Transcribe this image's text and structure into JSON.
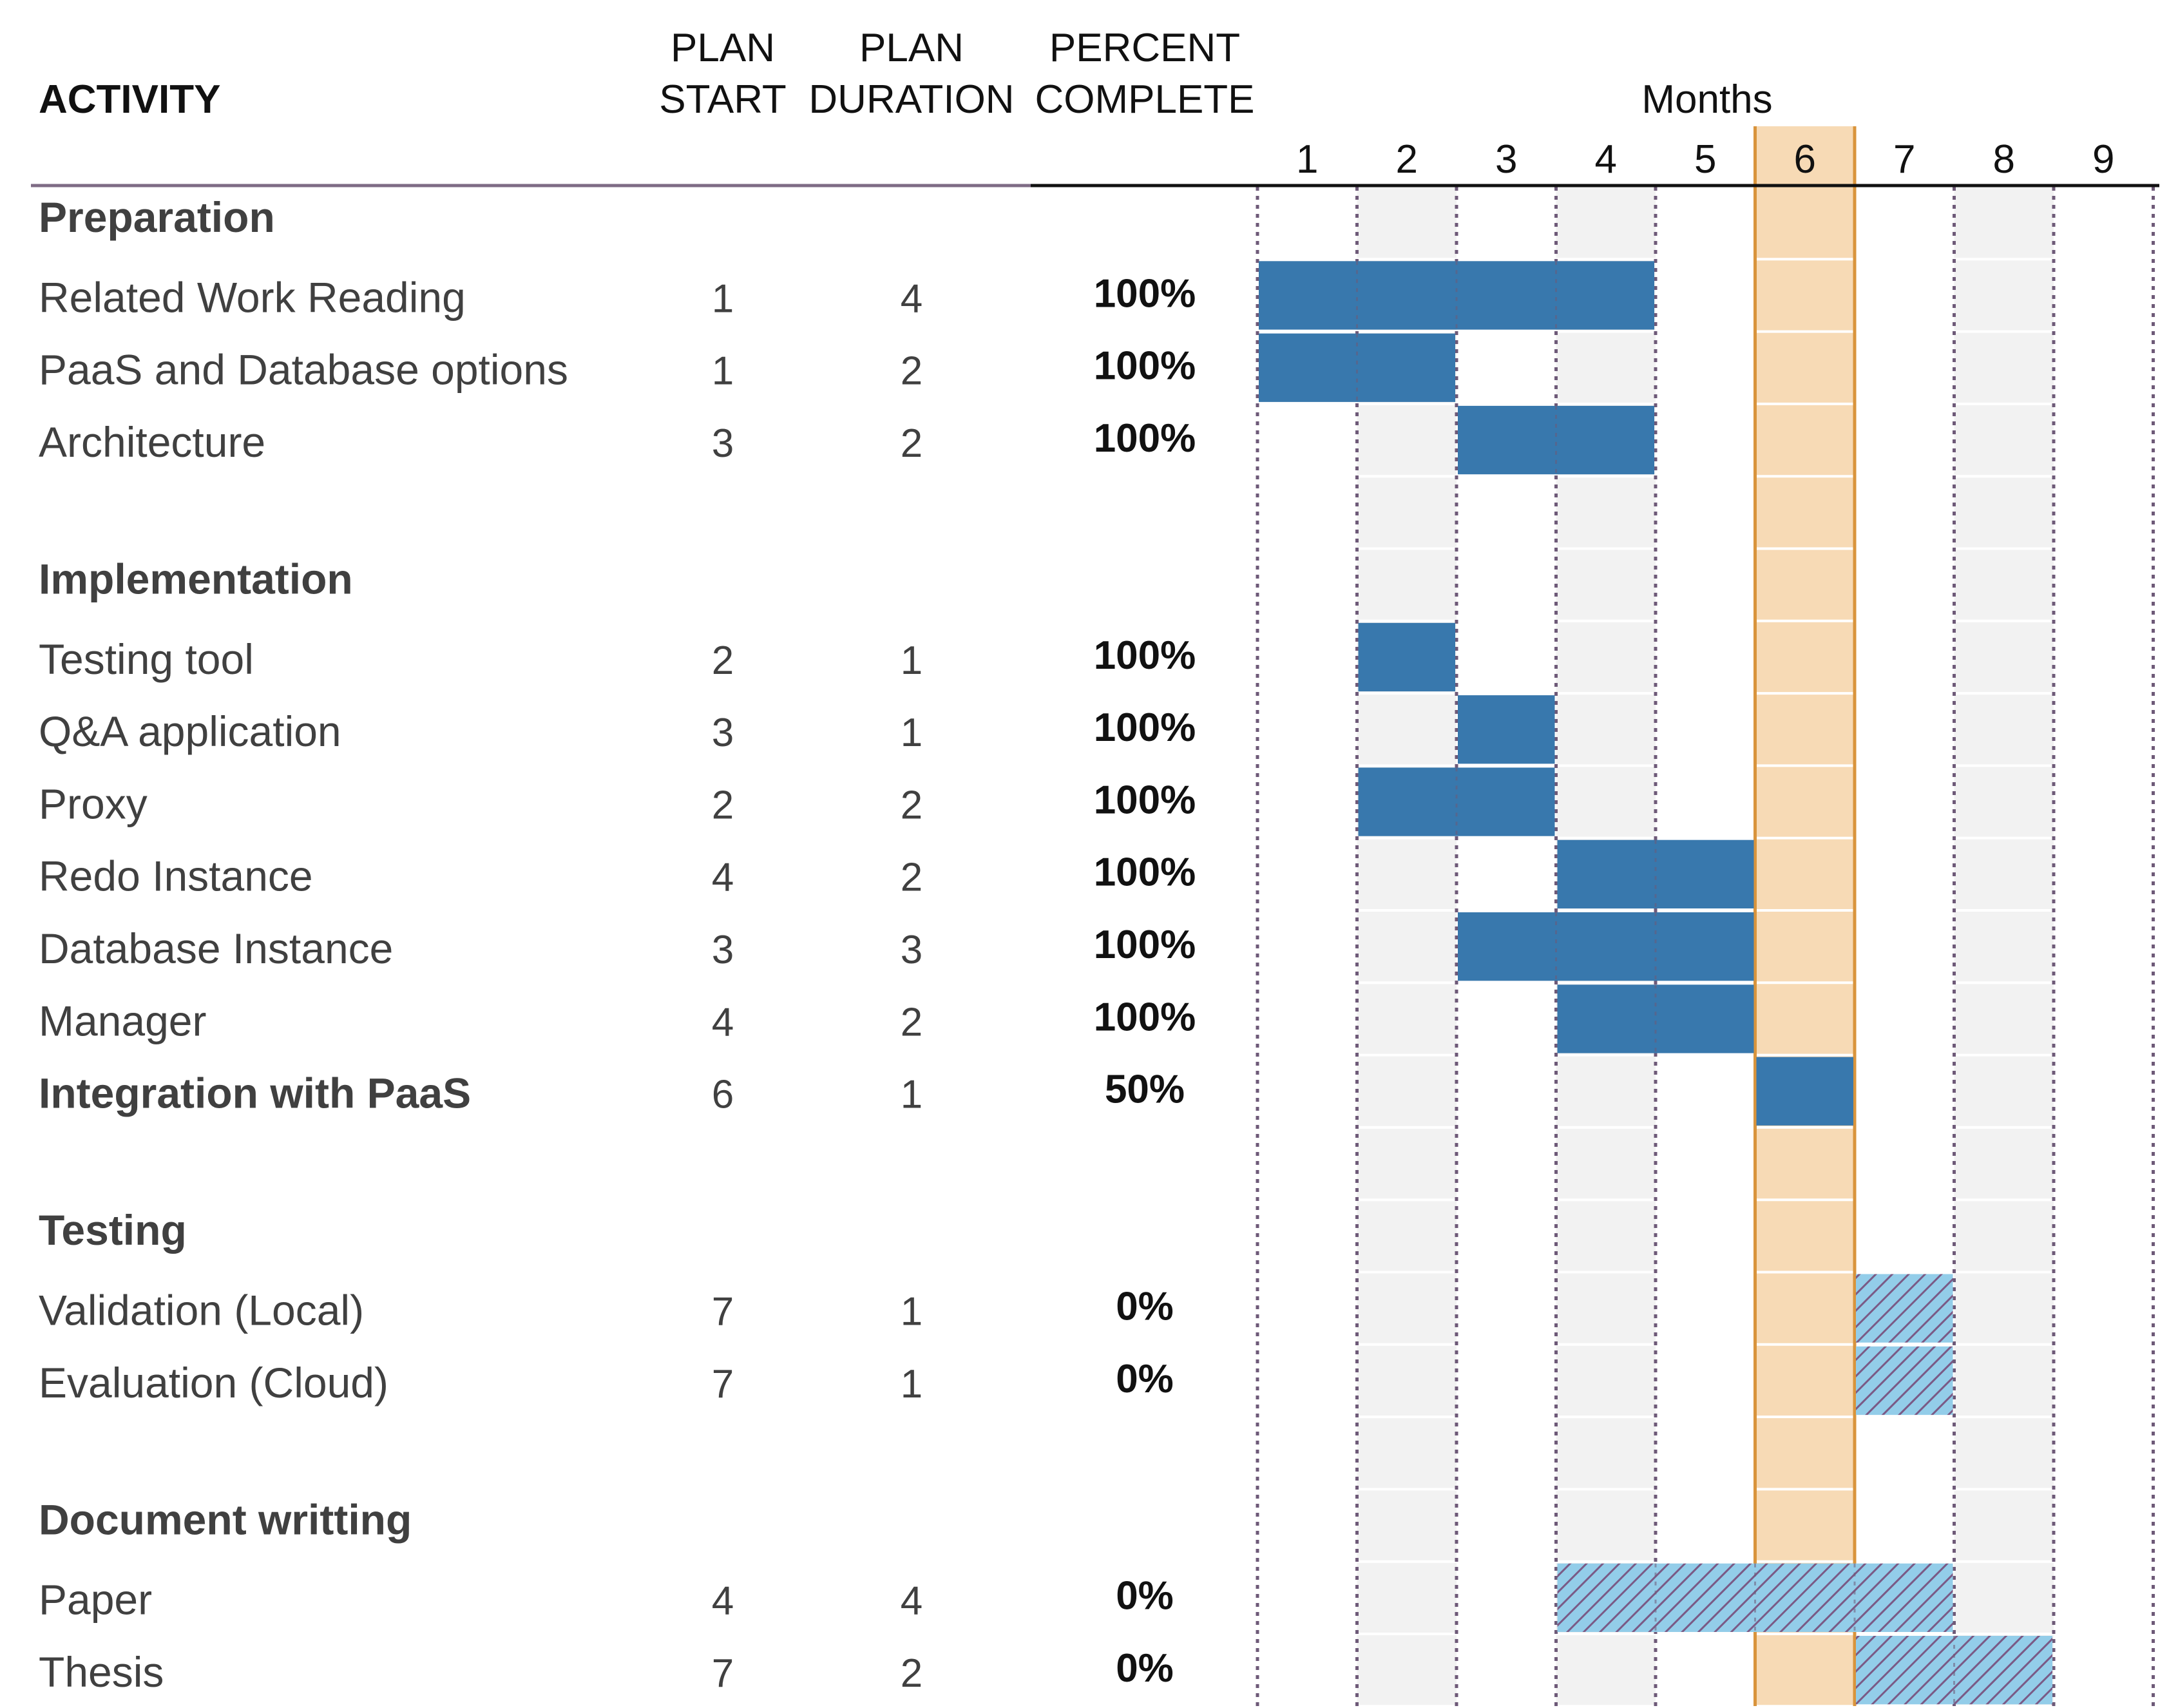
{
  "header": {
    "activity": "ACTIVITY",
    "plan_start": [
      "PLAN",
      "START"
    ],
    "plan_duration": [
      "PLAN",
      "DURATION"
    ],
    "percent_complete": [
      "PERCENT",
      "COMPLETE"
    ],
    "months_title": "Months"
  },
  "colors": {
    "done": "#3878AD",
    "planned": "#93CDE9",
    "hatch": "#7A5A86",
    "current_month": "#F7DAB5",
    "current_month_border": "#D9943C",
    "shade_column": "#F2F2F2",
    "grid_dots": "#6E5A78",
    "header_rule_left": "#7E6B85",
    "header_rule_right": "#111111"
  },
  "chart_data": {
    "type": "gantt",
    "x_unit": "month",
    "months": [
      1,
      2,
      3,
      4,
      5,
      6,
      7,
      8,
      9
    ],
    "current_month": 6,
    "rows": [
      {
        "kind": "group",
        "label": "Preparation"
      },
      {
        "kind": "task",
        "label": "Related Work Reading",
        "start": 1,
        "duration": 4,
        "percent": "100%"
      },
      {
        "kind": "task",
        "label": "PaaS and Database options",
        "start": 1,
        "duration": 2,
        "percent": "100%"
      },
      {
        "kind": "task",
        "label": "Architecture",
        "start": 3,
        "duration": 2,
        "percent": "100%"
      },
      {
        "kind": "blank"
      },
      {
        "kind": "group",
        "label": "Implementation"
      },
      {
        "kind": "task",
        "label": "Testing tool",
        "start": 2,
        "duration": 1,
        "percent": "100%"
      },
      {
        "kind": "task",
        "label": "Q&A application",
        "start": 3,
        "duration": 1,
        "percent": "100%"
      },
      {
        "kind": "task",
        "label": "Proxy",
        "start": 2,
        "duration": 2,
        "percent": "100%"
      },
      {
        "kind": "task",
        "label": "Redo Instance",
        "start": 4,
        "duration": 2,
        "percent": "100%"
      },
      {
        "kind": "task",
        "label": "Database Instance",
        "start": 3,
        "duration": 3,
        "percent": "100%"
      },
      {
        "kind": "task",
        "label": "Manager",
        "start": 4,
        "duration": 2,
        "percent": "100%"
      },
      {
        "kind": "task",
        "label": "Integration with PaaS",
        "start": 6,
        "duration": 1,
        "percent": "50%",
        "bold": true
      },
      {
        "kind": "blank"
      },
      {
        "kind": "group",
        "label": "Testing"
      },
      {
        "kind": "task",
        "label": "Validation (Local)",
        "start": 7,
        "duration": 1,
        "percent": "0%"
      },
      {
        "kind": "task",
        "label": "Evaluation (Cloud)",
        "start": 7,
        "duration": 1,
        "percent": "0%"
      },
      {
        "kind": "blank"
      },
      {
        "kind": "group",
        "label": "Document writting"
      },
      {
        "kind": "task",
        "label": "Paper",
        "start": 4,
        "duration": 4,
        "percent": "0%"
      },
      {
        "kind": "task",
        "label": "Thesis",
        "start": 7,
        "duration": 2,
        "percent": "0%"
      }
    ]
  }
}
